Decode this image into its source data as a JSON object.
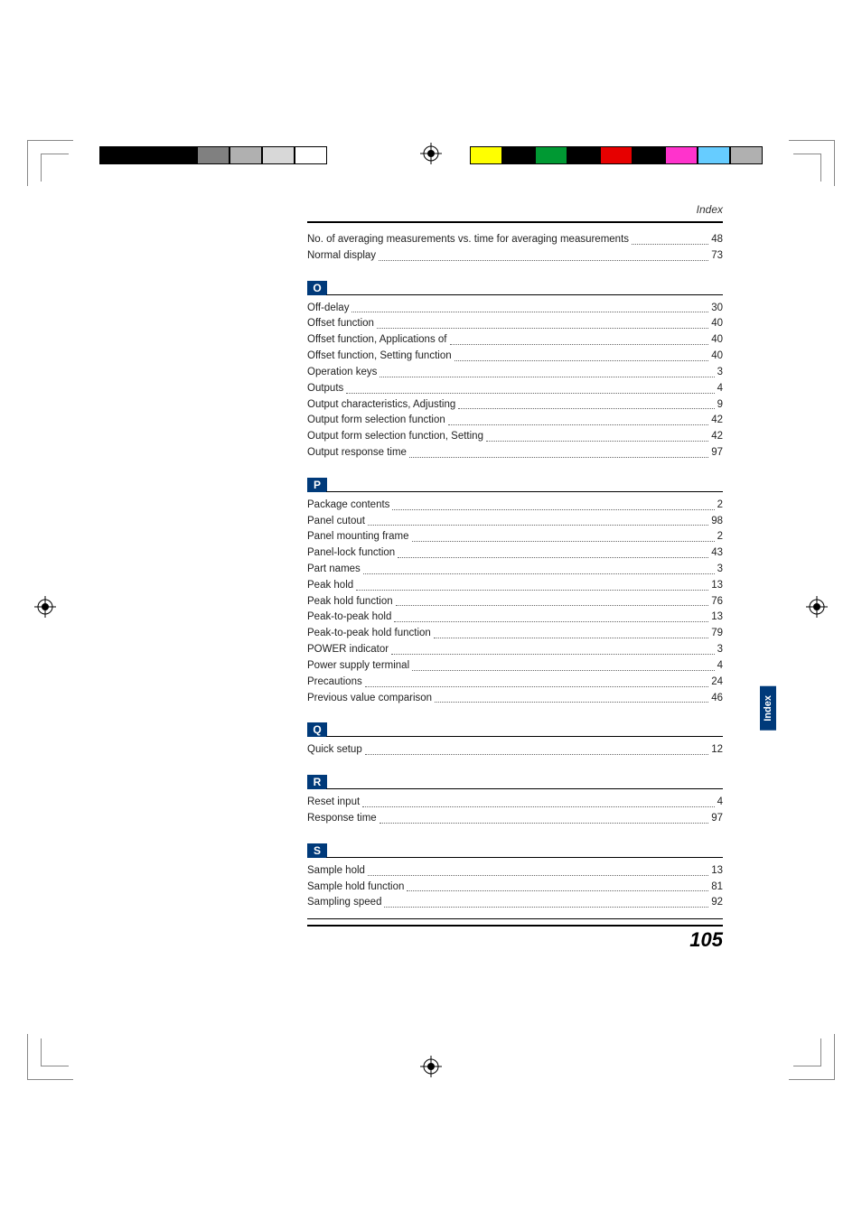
{
  "header": {
    "label": "Index"
  },
  "side_tab": "Index",
  "page_number": "105",
  "colorbar_left": [
    "#000000",
    "#000000",
    "#000000",
    "#808080",
    "#b0b0b0",
    "#d8d8d8",
    "#ffffff"
  ],
  "colorbar_right": [
    "#ffff00",
    "#000000",
    "#009933",
    "#000000",
    "#e60000",
    "#000000",
    "#ff33cc",
    "#66ccff",
    "#b0b0b0"
  ],
  "sections": [
    {
      "letter": null,
      "entries": [
        {
          "label": "No. of averaging measurements vs. time for averaging measurements",
          "pg": "48"
        },
        {
          "label": "Normal display",
          "pg": "73"
        }
      ]
    },
    {
      "letter": "O",
      "entries": [
        {
          "label": "Off-delay",
          "pg": "30"
        },
        {
          "label": "Offset function",
          "pg": "40"
        },
        {
          "label": "Offset function, Applications of",
          "pg": "40"
        },
        {
          "label": "Offset function, Setting function",
          "pg": "40"
        },
        {
          "label": "Operation keys",
          "pg": "3"
        },
        {
          "label": "Outputs",
          "pg": "4"
        },
        {
          "label": "Output characteristics, Adjusting",
          "pg": "9"
        },
        {
          "label": "Output form selection function",
          "pg": "42"
        },
        {
          "label": "Output form selection function, Setting",
          "pg": "42"
        },
        {
          "label": "Output response time",
          "pg": "97"
        }
      ]
    },
    {
      "letter": "P",
      "entries": [
        {
          "label": "Package contents",
          "pg": "2"
        },
        {
          "label": "Panel cutout",
          "pg": "98"
        },
        {
          "label": "Panel mounting frame",
          "pg": "2"
        },
        {
          "label": "Panel-lock function",
          "pg": "43"
        },
        {
          "label": "Part names",
          "pg": "3"
        },
        {
          "label": "Peak hold",
          "pg": "13"
        },
        {
          "label": "Peak hold function",
          "pg": "76"
        },
        {
          "label": "Peak-to-peak hold",
          "pg": "13"
        },
        {
          "label": "Peak-to-peak hold function",
          "pg": "79"
        },
        {
          "label": "POWER indicator",
          "pg": "3"
        },
        {
          "label": "Power supply terminal",
          "pg": "4"
        },
        {
          "label": "Precautions",
          "pg": "24"
        },
        {
          "label": "Previous value comparison",
          "pg": "46"
        }
      ]
    },
    {
      "letter": "Q",
      "entries": [
        {
          "label": "Quick setup",
          "pg": "12"
        }
      ]
    },
    {
      "letter": "R",
      "entries": [
        {
          "label": "Reset input",
          "pg": "4"
        },
        {
          "label": "Response time",
          "pg": "97"
        }
      ]
    },
    {
      "letter": "S",
      "entries": [
        {
          "label": "Sample hold",
          "pg": "13"
        },
        {
          "label": "Sample hold function",
          "pg": "81"
        },
        {
          "label": "Sampling speed",
          "pg": "92"
        }
      ]
    }
  ]
}
